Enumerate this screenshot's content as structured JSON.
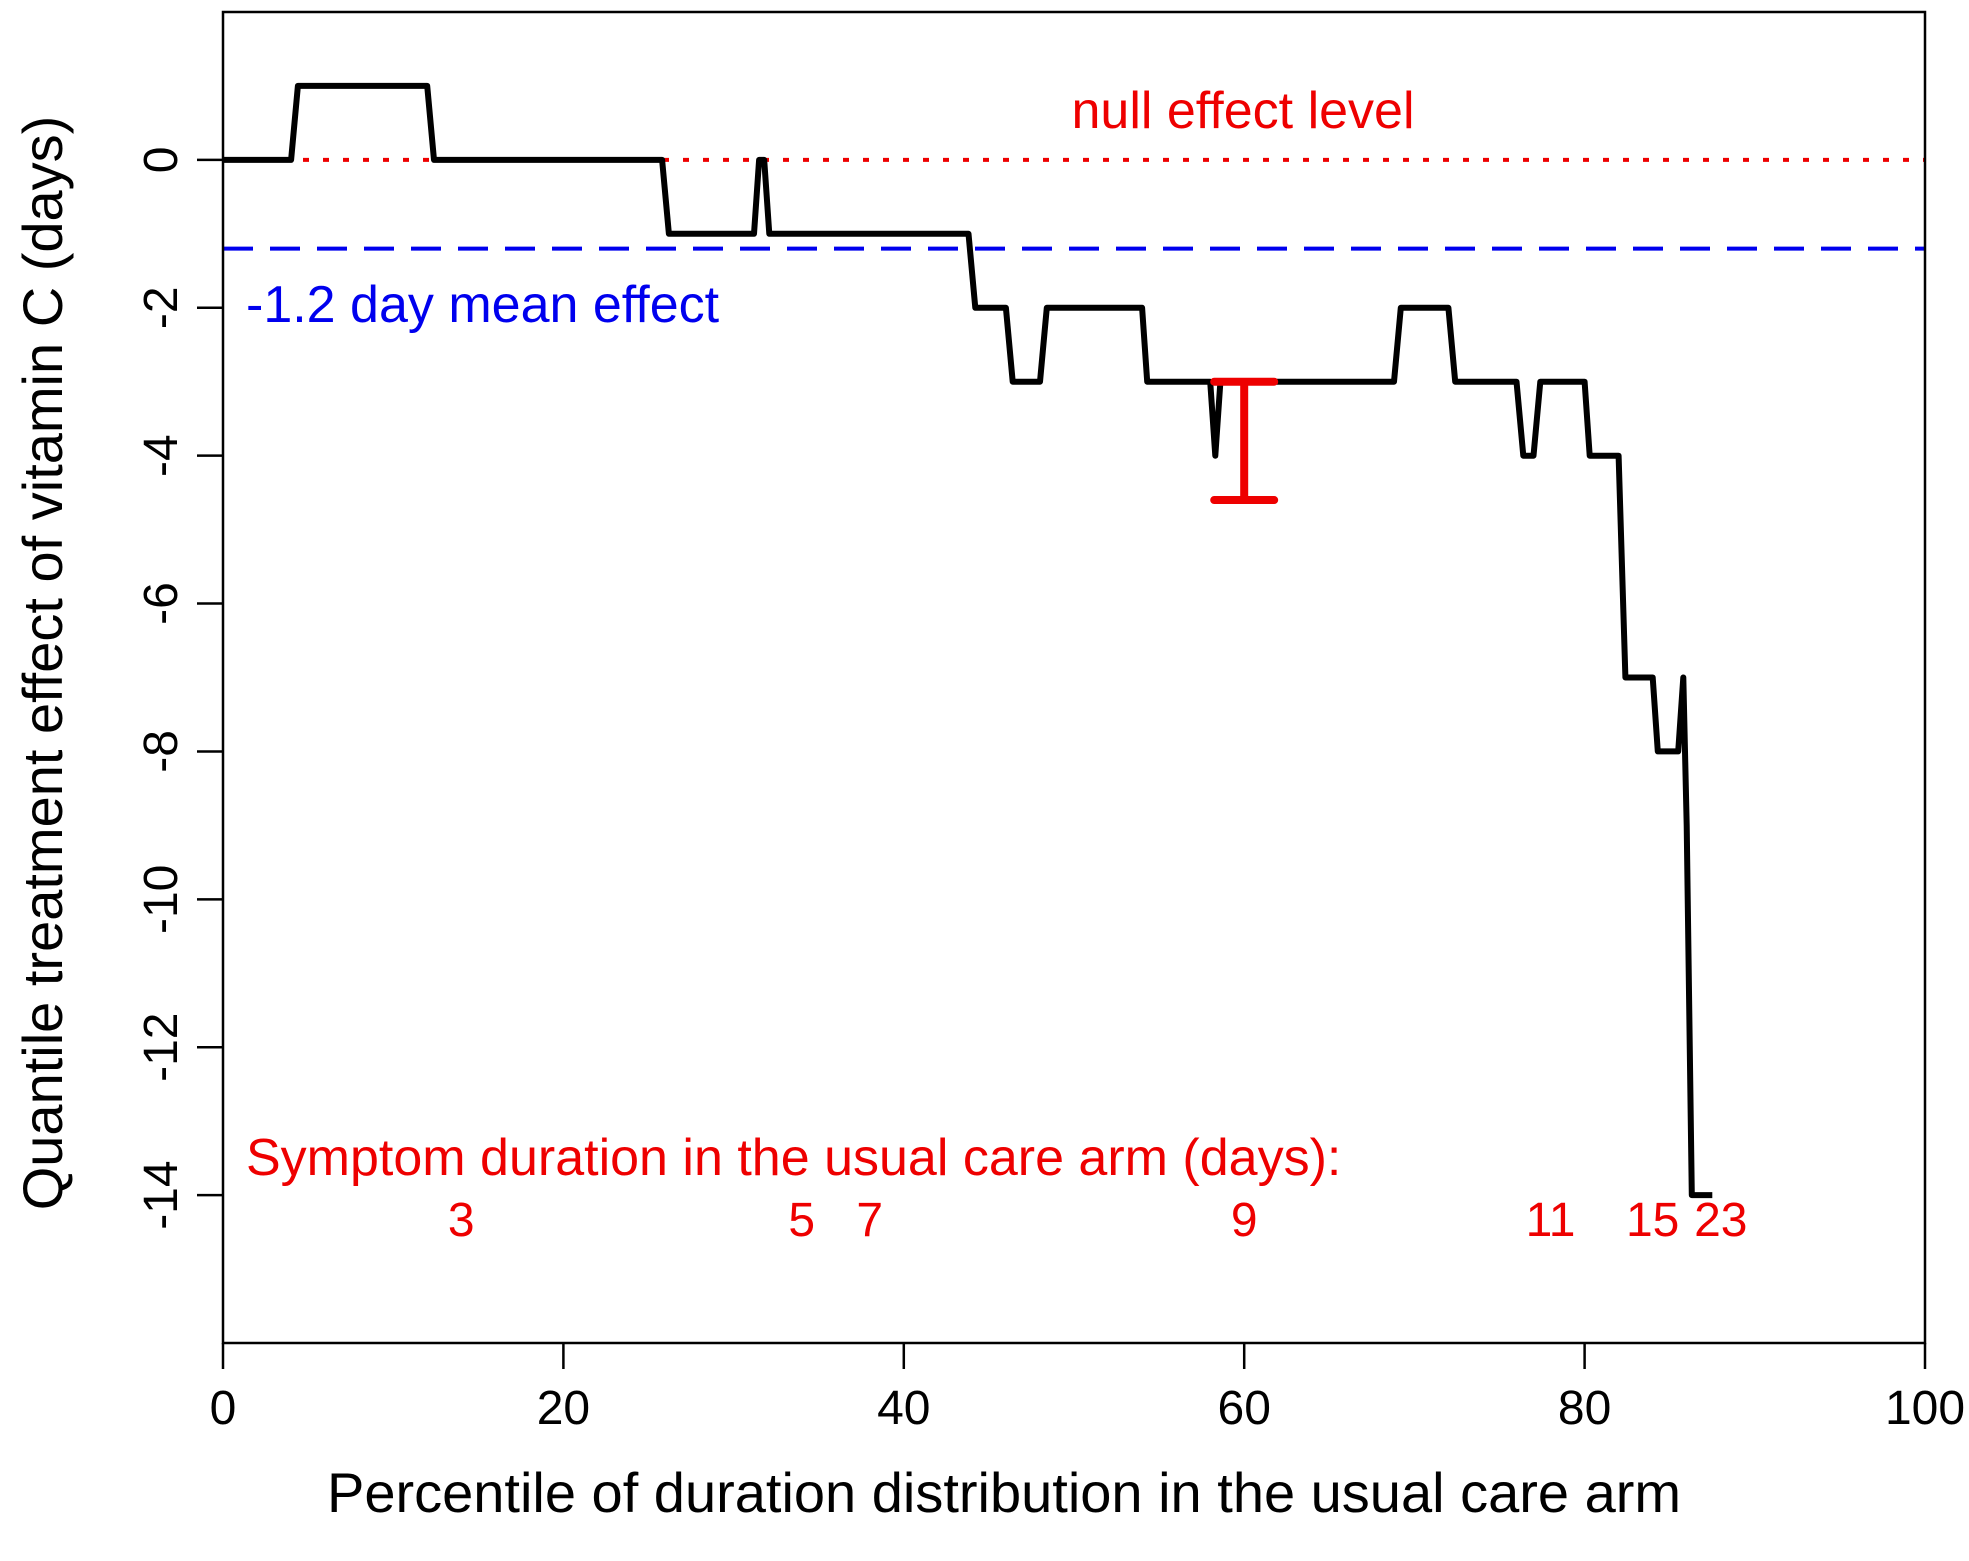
{
  "chart_data": {
    "type": "line",
    "title": "",
    "xlabel": "Percentile of duration distribution in the usual care arm",
    "ylabel": "Quantile treatment effect of vitamin C (days)",
    "xlim": [
      0,
      100
    ],
    "ylim": [
      -16,
      2
    ],
    "xticks": [
      0,
      20,
      40,
      60,
      80,
      100
    ],
    "yticks": [
      0,
      -2,
      -4,
      -6,
      -8,
      -10,
      -12,
      -14
    ],
    "xtick_labels": [
      "0",
      "20",
      "40",
      "60",
      "80",
      "100"
    ],
    "ytick_labels": [
      "0",
      "-2",
      "-4",
      "-6",
      "-8",
      "-10",
      "-12",
      "-14"
    ],
    "grid": false,
    "series": [
      {
        "name": "Quantile treatment effect",
        "color": "#000000",
        "x": [
          0,
          4,
          4.4,
          12,
          12.4,
          25.8,
          26.2,
          31.2,
          31.5,
          31.8,
          32.1,
          43.8,
          44.2,
          46,
          46.4,
          48,
          48.4,
          54,
          54.3,
          58,
          58.3,
          58.6,
          68.8,
          69.2,
          72,
          72.4,
          76,
          76.4,
          77,
          77.4,
          80,
          80.3,
          82,
          82.2,
          82.4,
          84,
          84.3,
          85.5,
          85.8,
          86,
          86.3,
          87.5
        ],
        "y": [
          0,
          0,
          1,
          1,
          0,
          0,
          -1,
          -1,
          0,
          0,
          -1,
          -1,
          -2,
          -2,
          -3,
          -3,
          -2,
          -2,
          -3,
          -3,
          -4,
          -3,
          -3,
          -2,
          -2,
          -3,
          -3,
          -4,
          -4,
          -3,
          -3,
          -4,
          -4,
          -5.5,
          -7,
          -7,
          -8,
          -8,
          -7,
          -9,
          -14,
          -14
        ]
      },
      {
        "name": "-1.2 day mean effect",
        "color": "#0000ee",
        "style": "dashed",
        "y": -1.2
      },
      {
        "name": "null effect level",
        "color": "#ee0000",
        "style": "dotted",
        "y": 0
      }
    ],
    "error_bar": {
      "x": 60,
      "y_top": -3,
      "y_bottom": -4.6,
      "color": "#ee0000"
    },
    "annotations": {
      "null_label": "null effect level",
      "mean_label": "-1.2 day mean effect",
      "symptom_heading": "Symptom duration in the usual care arm (days):",
      "duration_marks": [
        {
          "label": "3",
          "x": 14
        },
        {
          "label": "5",
          "x": 34
        },
        {
          "label": "7",
          "x": 38
        },
        {
          "label": "9",
          "x": 60
        },
        {
          "label": "11",
          "x": 78
        },
        {
          "label": "15",
          "x": 84
        },
        {
          "label": "23",
          "x": 88
        }
      ],
      "duration_row_y": -14.55
    }
  }
}
